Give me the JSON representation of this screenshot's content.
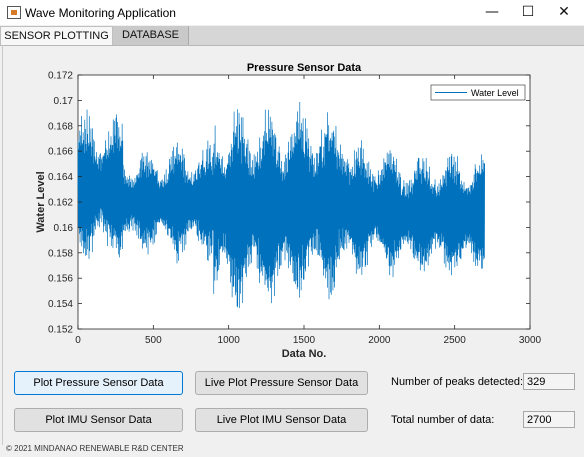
{
  "window": {
    "title": "Wave Monitoring Application",
    "minimize_glyph": "—",
    "maximize_glyph": "☐",
    "close_glyph": "✕"
  },
  "tabs": [
    {
      "label": "SENSOR PLOTTING",
      "active": true
    },
    {
      "label": "DATABASE",
      "active": false
    }
  ],
  "buttons": {
    "plot_pressure": "Plot Pressure Sensor Data",
    "live_plot_pressure": "Live Plot Pressure Sensor Data",
    "plot_imu": "Plot IMU Sensor Data",
    "live_plot_imu": "Live Plot IMU Sensor Data"
  },
  "stats": {
    "peaks_label": "Number of peaks detected:",
    "peaks_value": "329",
    "total_label": "Total number of data:",
    "total_value": "2700"
  },
  "footer": "© 2021 MINDANAO RENEWABLE R&D CENTER",
  "colors": {
    "series": "#0072bd",
    "window_bg": "#f0f0f0"
  },
  "chart_data": {
    "type": "line",
    "title": "Pressure Sensor Data",
    "xlabel": "Data No.",
    "ylabel": "Water Level",
    "xlim": [
      0,
      3000
    ],
    "ylim": [
      0.152,
      0.172
    ],
    "xticks": [
      0,
      500,
      1000,
      1500,
      2000,
      2500,
      3000
    ],
    "yticks": [
      0.152,
      0.154,
      0.156,
      0.158,
      0.16,
      0.162,
      0.164,
      0.166,
      0.168,
      0.17,
      0.172
    ],
    "ytick_labels": [
      "0.152",
      "0.154",
      "0.156",
      "0.158",
      "0.16",
      "0.162",
      "0.164",
      "0.166",
      "0.168",
      "0.17",
      "0.172"
    ],
    "legend": {
      "position": "top-right"
    },
    "grid": false,
    "series": [
      {
        "name": "Water Level",
        "n_points": 2700,
        "envelope": [
          {
            "x": [
              0,
              300
            ],
            "min": 0.1565,
            "max": 0.1695,
            "mean": 0.163
          },
          {
            "x": [
              300,
              600
            ],
            "min": 0.1575,
            "max": 0.1665,
            "mean": 0.162
          },
          {
            "x": [
              600,
              900
            ],
            "min": 0.157,
            "max": 0.167,
            "mean": 0.162
          },
          {
            "x": [
              900,
              1400
            ],
            "min": 0.1525,
            "max": 0.1705,
            "mean": 0.1615
          },
          {
            "x": [
              1400,
              1800
            ],
            "min": 0.154,
            "max": 0.1705,
            "mean": 0.162
          },
          {
            "x": [
              1800,
              2100
            ],
            "min": 0.1555,
            "max": 0.167,
            "mean": 0.1615
          },
          {
            "x": [
              2100,
              2350
            ],
            "min": 0.156,
            "max": 0.1665,
            "mean": 0.161
          },
          {
            "x": [
              2350,
              2700
            ],
            "min": 0.155,
            "max": 0.166,
            "mean": 0.161
          }
        ]
      }
    ]
  }
}
